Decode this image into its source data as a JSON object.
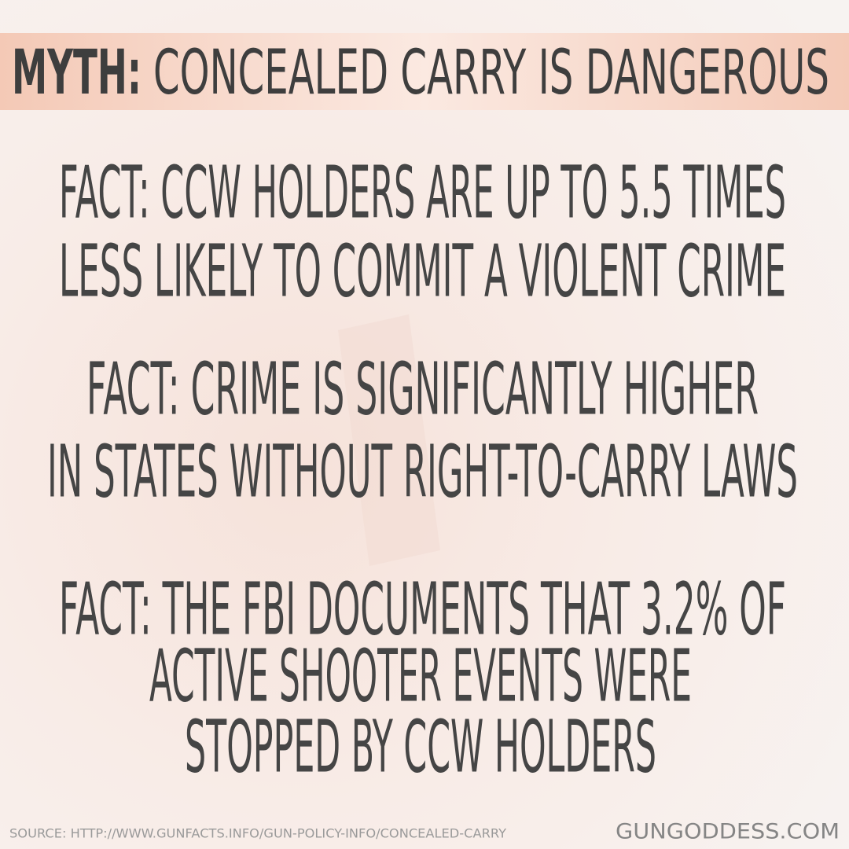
{
  "header": {
    "label": "MYTH:",
    "title": "CONCEALED CARRY IS DANGEROUS"
  },
  "facts": [
    {
      "lines": [
        "FACT: CCW HOLDERS ARE UP TO 5.5 TIMES",
        "LESS LIKELY TO COMMIT A VIOLENT CRIME"
      ]
    },
    {
      "lines": [
        "FACT: CRIME IS SIGNIFICANTLY HIGHER",
        "IN STATES WITHOUT RIGHT-TO-CARRY LAWS"
      ]
    },
    {
      "lines": [
        "FACT: THE FBI DOCUMENTS THAT 3.2% OF",
        "ACTIVE SHOOTER EVENTS WERE",
        "STOPPED BY CCW HOLDERS"
      ]
    }
  ],
  "footer": {
    "source": "SOURCE: HTTP://WWW.GUNFACTS.INFO/GUN-POLICY-INFO/CONCEALED-CARRY",
    "site": "GUNGODDESS.COM"
  }
}
